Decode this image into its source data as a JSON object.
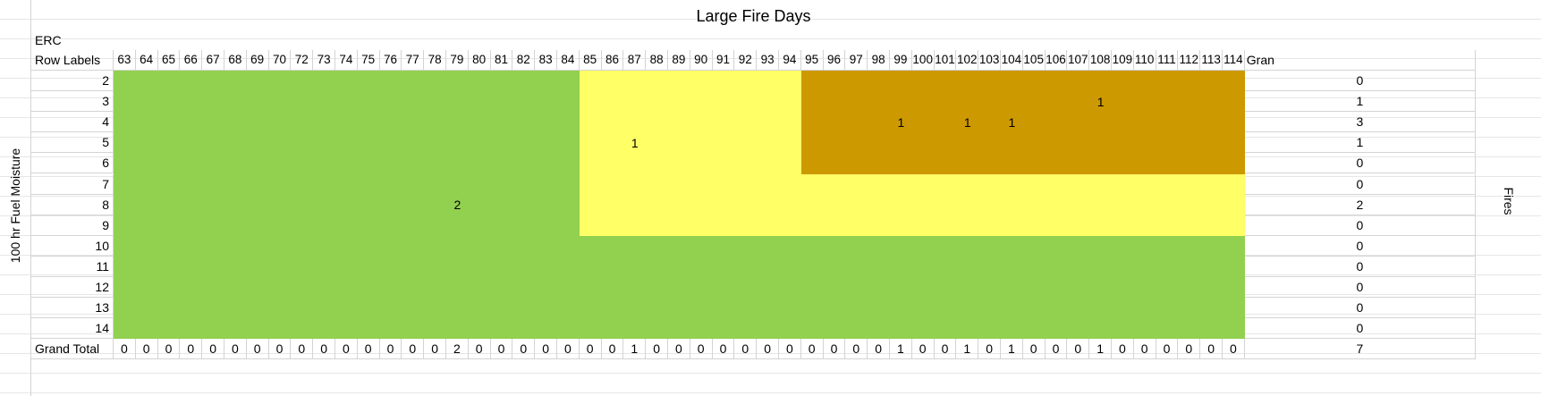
{
  "title": "Large Fire Days",
  "erc_label": "ERC",
  "row_labels_header": "Row Labels",
  "grand_total_col_header": "Gran",
  "grand_total_row_label": "Grand Total",
  "y_axis_label": "100 hr Fuel Moisture",
  "right_axis_label": "Fires",
  "colors": {
    "green": "#92d050",
    "yellow": "#ffff66",
    "brown": "#cc9900",
    "grid": "#d4d4d4"
  },
  "columns": [
    "63",
    "64",
    "65",
    "66",
    "67",
    "68",
    "69",
    "70",
    "72",
    "73",
    "74",
    "75",
    "76",
    "77",
    "78",
    "79",
    "80",
    "81",
    "82",
    "83",
    "84",
    "85",
    "86",
    "87",
    "88",
    "89",
    "90",
    "91",
    "92",
    "93",
    "94",
    "95",
    "96",
    "97",
    "98",
    "99",
    "100",
    "101",
    "102",
    "103",
    "104",
    "105",
    "106",
    "107",
    "108",
    "109",
    "110",
    "111",
    "112",
    "113",
    "114"
  ],
  "rows": [
    "2",
    "3",
    "4",
    "5",
    "6",
    "7",
    "8",
    "9",
    "10",
    "11",
    "12",
    "13",
    "14"
  ],
  "row_totals": [
    "0",
    "1",
    "3",
    "1",
    "0",
    "0",
    "2",
    "0",
    "0",
    "0",
    "0",
    "0",
    "0"
  ],
  "col_totals": [
    "0",
    "0",
    "0",
    "0",
    "0",
    "0",
    "0",
    "0",
    "0",
    "0",
    "0",
    "0",
    "0",
    "0",
    "0",
    "2",
    "0",
    "0",
    "0",
    "0",
    "0",
    "0",
    "0",
    "1",
    "0",
    "0",
    "0",
    "0",
    "0",
    "0",
    "0",
    "0",
    "0",
    "0",
    "0",
    "1",
    "0",
    "0",
    "1",
    "0",
    "1",
    "0",
    "0",
    "0",
    "1",
    "0",
    "0",
    "0",
    "0",
    "0",
    "0"
  ],
  "grand_total": "7",
  "cell_values": [
    {
      "row": "3",
      "col": "108",
      "value": "1"
    },
    {
      "row": "4",
      "col": "99",
      "value": "1"
    },
    {
      "row": "4",
      "col": "102",
      "value": "1"
    },
    {
      "row": "4",
      "col": "104",
      "value": "1"
    },
    {
      "row": "5",
      "col": "87",
      "value": "1"
    },
    {
      "row": "8",
      "col": "79",
      "value": "2"
    }
  ],
  "zones": [
    {
      "color": "green",
      "row_from": "2",
      "row_to": "14",
      "col_from": "63",
      "col_to": "114"
    },
    {
      "color": "yellow",
      "row_from": "2",
      "row_to": "9",
      "col_from": "85",
      "col_to": "114"
    },
    {
      "color": "brown",
      "row_from": "2",
      "row_to": "6",
      "col_from": "95",
      "col_to": "114"
    }
  ]
}
